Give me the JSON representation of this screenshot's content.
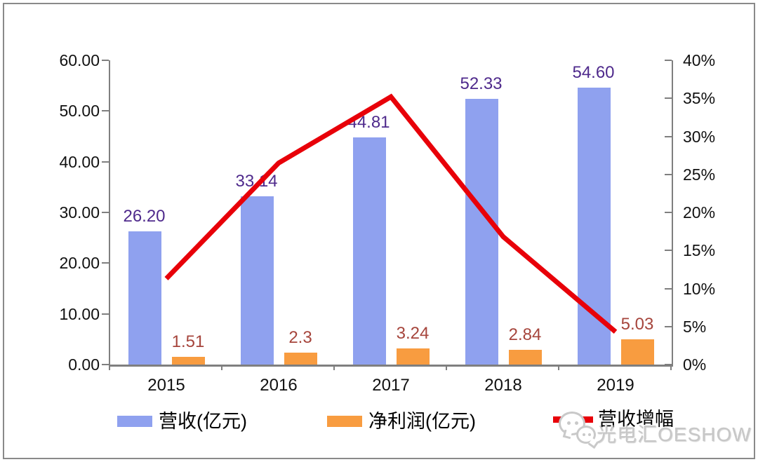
{
  "chart_data": {
    "type": "bar",
    "subtype": "grouped-bars-with-line",
    "categories": [
      "2015",
      "2016",
      "2017",
      "2018",
      "2019"
    ],
    "series": [
      {
        "name": "营收(亿元)",
        "type": "bar",
        "axis": "left",
        "color": "#8FA1EF",
        "values": [
          26.2,
          33.14,
          44.81,
          52.33,
          54.6
        ],
        "labels": [
          "26.20",
          "33.14",
          "44.81",
          "52.33",
          "54.60"
        ],
        "label_color": "#4F2A8C"
      },
      {
        "name": "净利润(亿元)",
        "type": "bar",
        "axis": "left",
        "color": "#F89C40",
        "values": [
          1.51,
          2.3,
          3.24,
          2.84,
          5.03
        ],
        "labels": [
          "1.51",
          "2.3",
          "3.24",
          "2.84",
          "5.03"
        ],
        "label_color": "#A6453C"
      },
      {
        "name": "营收增幅",
        "type": "line",
        "axis": "right",
        "color": "#E80009",
        "values_percent": [
          11.3,
          26.5,
          35.2,
          16.8,
          4.3
        ]
      }
    ],
    "left_axis": {
      "min": 0,
      "max": 60,
      "ticks": [
        "60.00",
        "50.00",
        "40.00",
        "30.00",
        "20.00",
        "10.00",
        "0.00"
      ]
    },
    "right_axis": {
      "min": 0,
      "max": 40,
      "ticks": [
        "40%",
        "35%",
        "30%",
        "25%",
        "20%",
        "15%",
        "10%",
        "5%",
        "0%"
      ]
    },
    "grid": false,
    "legend_position": "bottom"
  },
  "legend": {
    "items": [
      {
        "label": "营收(亿元)",
        "color": "#8FA1EF",
        "marker": "bar"
      },
      {
        "label": "净利润(亿元)",
        "color": "#F89C40",
        "marker": "bar"
      },
      {
        "label": "营收增幅",
        "color": "#E80009",
        "marker": "line"
      }
    ]
  },
  "watermark": {
    "text": "光电汇OESHOW",
    "icon": "wechat"
  },
  "colors": {
    "revenue_bar": "#8FA1EF",
    "profit_bar": "#F89C40",
    "growth_line": "#E80009",
    "revenue_label": "#4F2A8C",
    "profit_label": "#A6453C",
    "axis": "#7F7F7F"
  }
}
